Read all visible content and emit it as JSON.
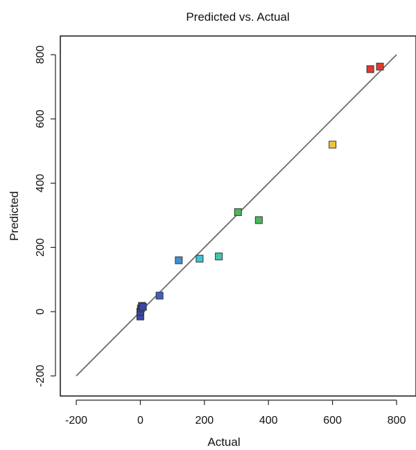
{
  "chart_data": {
    "type": "scatter",
    "title": "Predicted vs. Actual",
    "xlabel": "Actual",
    "ylabel": "Predicted",
    "xlim": [
      -200,
      800
    ],
    "ylim": [
      -200,
      800
    ],
    "xticks": [
      -200,
      0,
      200,
      400,
      600,
      800
    ],
    "yticks": [
      -200,
      0,
      200,
      400,
      600,
      800
    ],
    "grid": false,
    "reference_line": {
      "from": [
        -200,
        -200
      ],
      "to": [
        800,
        800
      ],
      "color": "#6b6b6b"
    },
    "points": [
      {
        "x": 0,
        "y": -15,
        "color": "#3b46a6"
      },
      {
        "x": 0,
        "y": 0,
        "color": "#3b46a6"
      },
      {
        "x": 2,
        "y": 10,
        "color": "#3b46a6"
      },
      {
        "x": 5,
        "y": 18,
        "color": "#3b46a6"
      },
      {
        "x": 8,
        "y": 15,
        "color": "#3b46a6"
      },
      {
        "x": 60,
        "y": 50,
        "color": "#4060c0"
      },
      {
        "x": 120,
        "y": 160,
        "color": "#3f8fd6"
      },
      {
        "x": 185,
        "y": 165,
        "color": "#3fc4d4"
      },
      {
        "x": 245,
        "y": 172,
        "color": "#3fc7b0"
      },
      {
        "x": 305,
        "y": 310,
        "color": "#49b85a"
      },
      {
        "x": 370,
        "y": 285,
        "color": "#49b85a"
      },
      {
        "x": 600,
        "y": 520,
        "color": "#f0c43a"
      },
      {
        "x": 718,
        "y": 755,
        "color": "#e23a2e"
      },
      {
        "x": 748,
        "y": 763,
        "color": "#e23a2e"
      }
    ]
  }
}
